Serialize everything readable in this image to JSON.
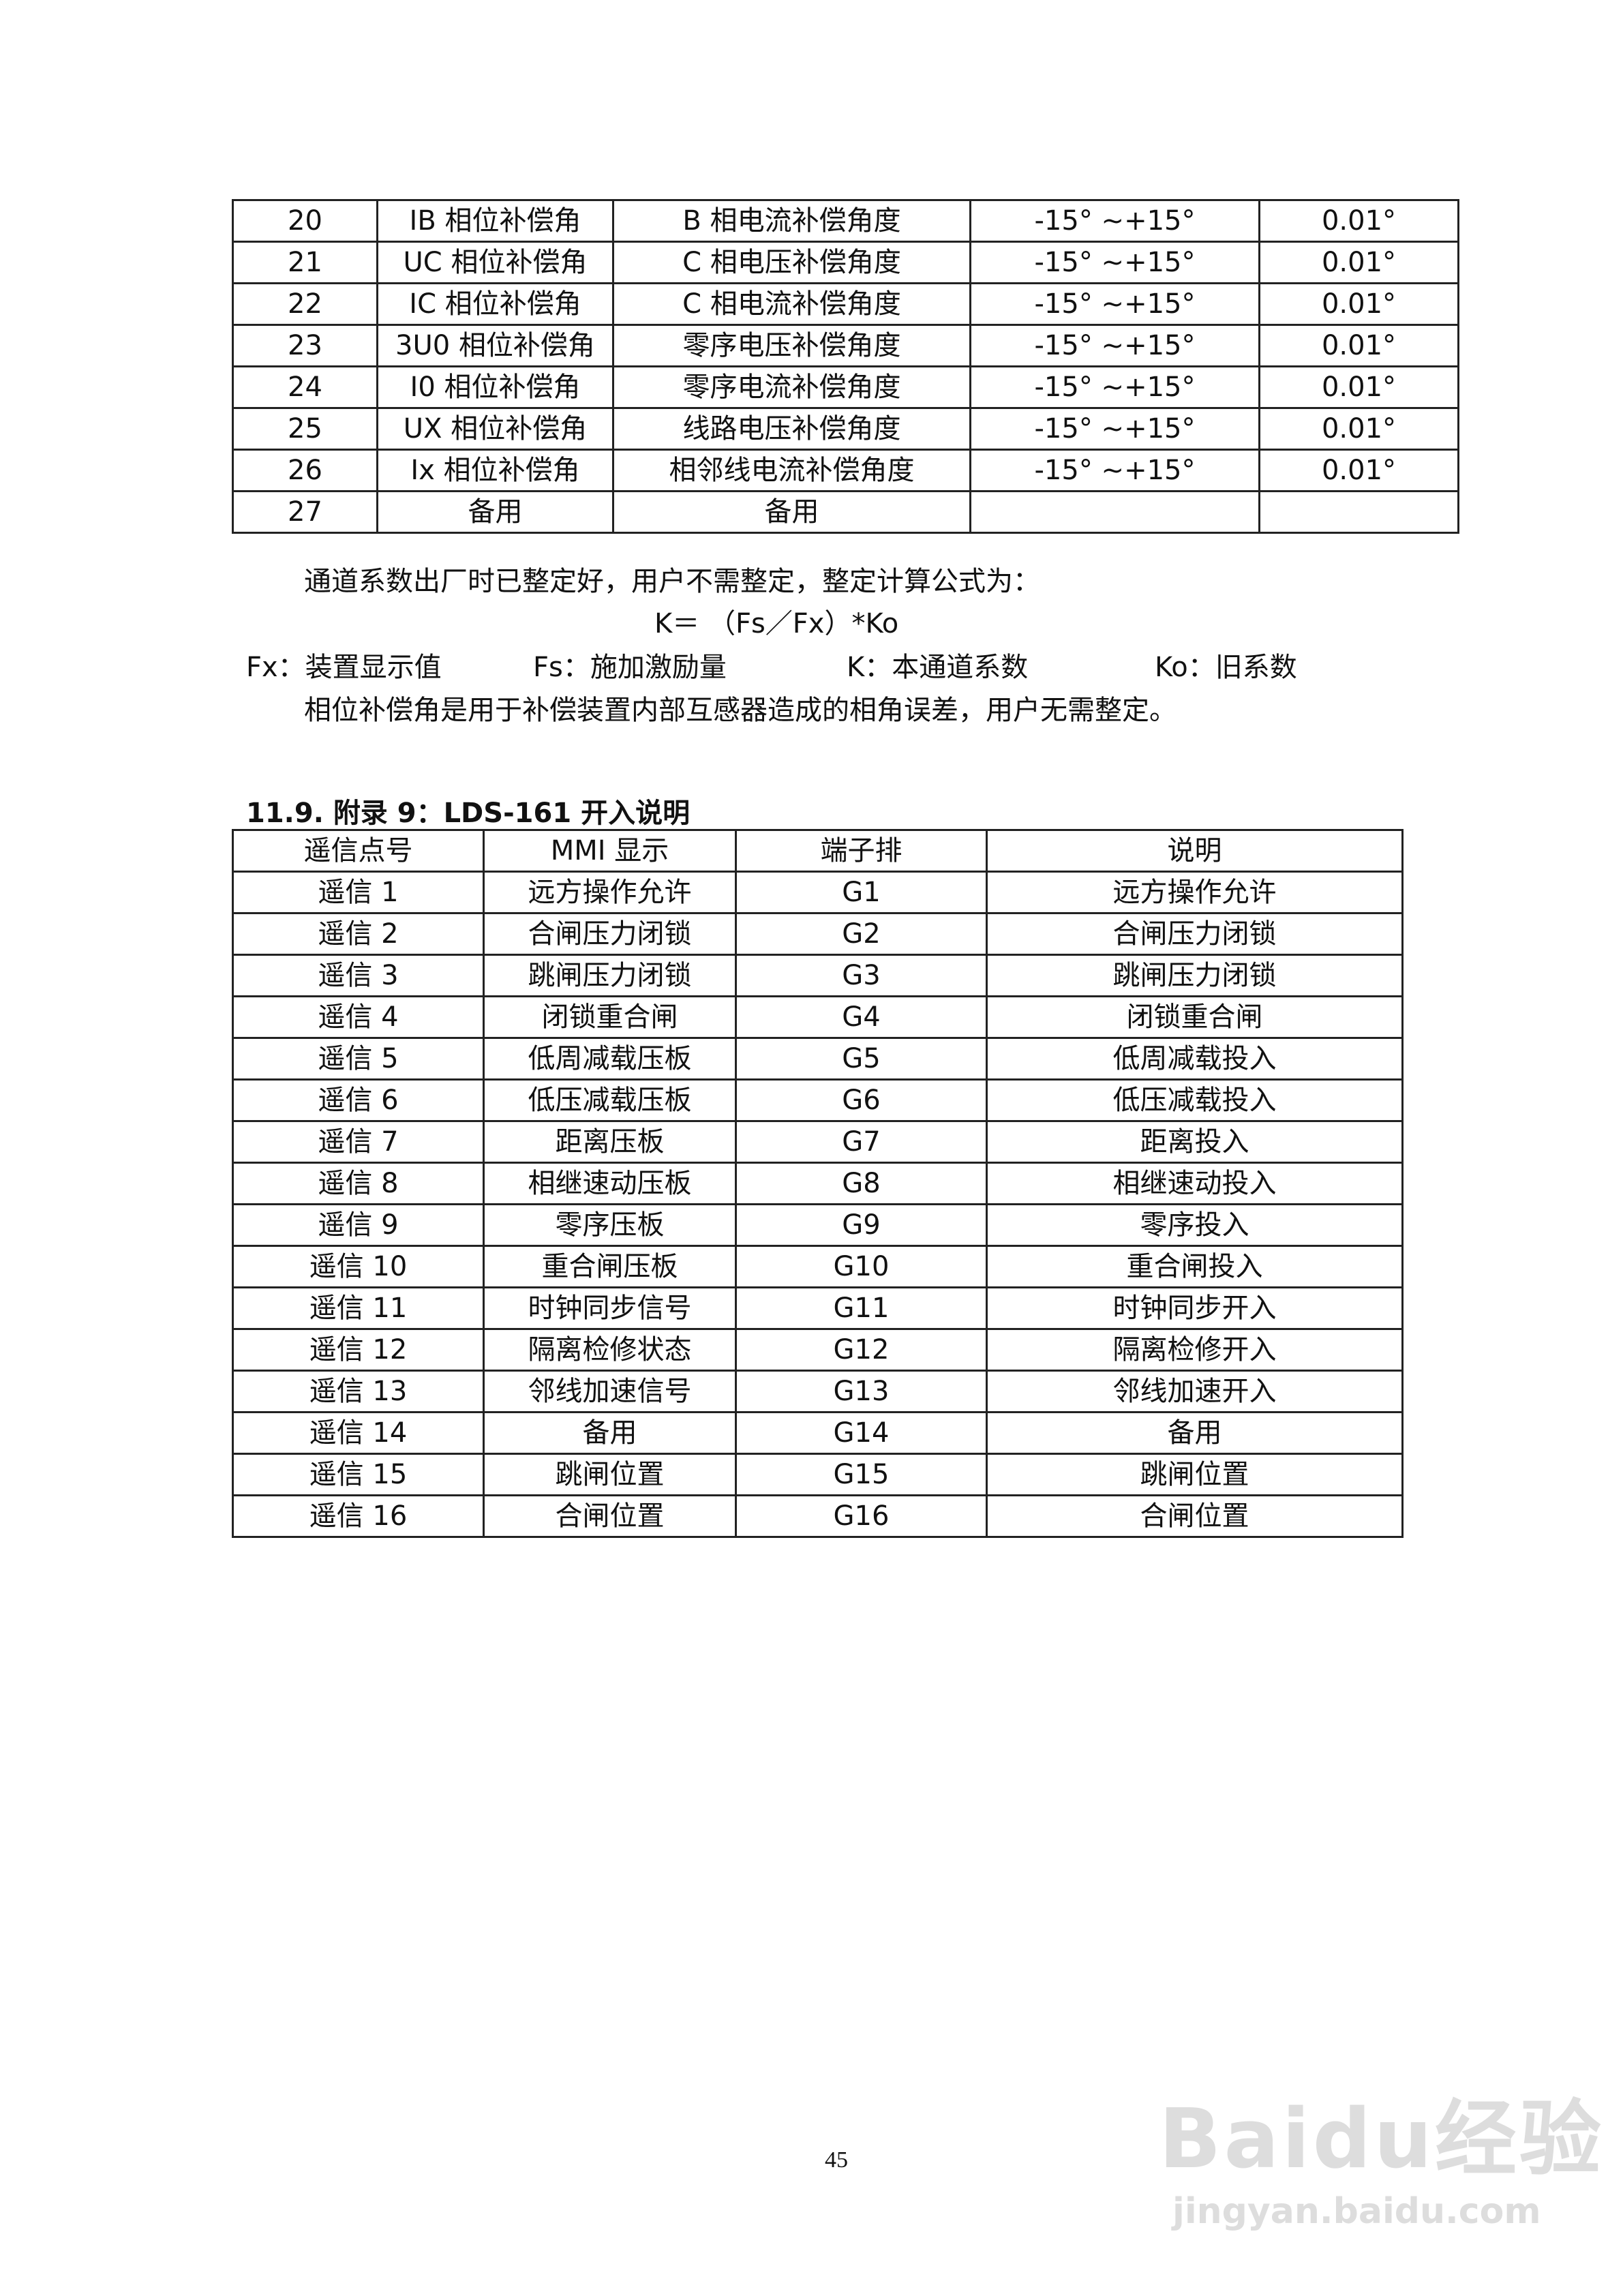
{
  "table1": {
    "rows": [
      [
        "20",
        "IB 相位补偿角",
        "B 相电流补偿角度",
        "-15° ~+15°",
        "0.01°"
      ],
      [
        "21",
        "UC 相位补偿角",
        "C 相电压补偿角度",
        "-15° ~+15°",
        "0.01°"
      ],
      [
        "22",
        "IC 相位补偿角",
        "C 相电流补偿角度",
        "-15° ~+15°",
        "0.01°"
      ],
      [
        "23",
        "3U0 相位补偿角",
        "零序电压补偿角度",
        "-15° ~+15°",
        "0.01°"
      ],
      [
        "24",
        "I0 相位补偿角",
        "零序电流补偿角度",
        "-15° ~+15°",
        "0.01°"
      ],
      [
        "25",
        "UX 相位补偿角",
        "线路电压补偿角度",
        "-15° ~+15°",
        "0.01°"
      ],
      [
        "26",
        "Ix 相位补偿角",
        "相邻线电流补偿角度",
        "-15° ~+15°",
        "0.01°"
      ],
      [
        "27",
        "备用",
        "备用",
        "",
        ""
      ]
    ]
  },
  "notes": {
    "p1": "通道系数出厂时已整定好，用户不需整定，整定计算公式为：",
    "formula": "K＝ （Fs／Fx）*Ko",
    "legend": [
      "Fx：装置显示值",
      "Fs：施加激励量",
      "K：本通道系数",
      "Ko：旧系数"
    ],
    "p2": "相位补偿角是用于补偿装置内部互感器造成的相角误差，用户无需整定。"
  },
  "section_heading": "11.9. 附录 9：LDS-161 开入说明",
  "table2": {
    "headers": [
      "遥信点号",
      "MMI 显示",
      "端子排",
      "说明"
    ],
    "rows": [
      [
        "遥信 1",
        "远方操作允许",
        "G1",
        "远方操作允许"
      ],
      [
        "遥信 2",
        "合闸压力闭锁",
        "G2",
        "合闸压力闭锁"
      ],
      [
        "遥信 3",
        "跳闸压力闭锁",
        "G3",
        "跳闸压力闭锁"
      ],
      [
        "遥信 4",
        "闭锁重合闸",
        "G4",
        "闭锁重合闸"
      ],
      [
        "遥信 5",
        "低周减载压板",
        "G5",
        "低周减载投入"
      ],
      [
        "遥信 6",
        "低压减载压板",
        "G6",
        "低压减载投入"
      ],
      [
        "遥信 7",
        "距离压板",
        "G7",
        "距离投入"
      ],
      [
        "遥信 8",
        "相继速动压板",
        "G8",
        "相继速动投入"
      ],
      [
        "遥信 9",
        "零序压板",
        "G9",
        "零序投入"
      ],
      [
        "遥信 10",
        "重合闸压板",
        "G10",
        "重合闸投入"
      ],
      [
        "遥信 11",
        "时钟同步信号",
        "G11",
        "时钟同步开入"
      ],
      [
        "遥信 12",
        "隔离检修状态",
        "G12",
        "隔离检修开入"
      ],
      [
        "遥信 13",
        "邻线加速信号",
        "G13",
        "邻线加速开入"
      ],
      [
        "遥信 14",
        "备用",
        "G14",
        "备用"
      ],
      [
        "遥信 15",
        "跳闸位置",
        "G15",
        "跳闸位置"
      ],
      [
        "遥信 16",
        "合闸位置",
        "G16",
        "合闸位置"
      ]
    ]
  },
  "page_number": "45",
  "watermark": {
    "brand": "Baidu经验",
    "url": "jingyan.baidu.com"
  }
}
